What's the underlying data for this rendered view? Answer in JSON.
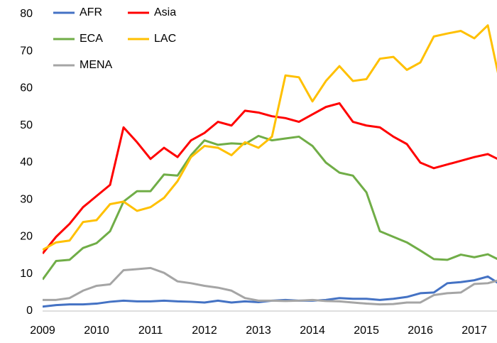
{
  "chart_data": {
    "type": "line",
    "x": [
      2009,
      2009.25,
      2009.5,
      2009.75,
      2010,
      2010.25,
      2010.5,
      2010.75,
      2011,
      2011.25,
      2011.5,
      2011.75,
      2012,
      2012.25,
      2012.5,
      2012.75,
      2013,
      2013.25,
      2013.5,
      2013.75,
      2014,
      2014.25,
      2014.5,
      2014.75,
      2015,
      2015.25,
      2015.5,
      2015.75,
      2016,
      2016.25,
      2016.5,
      2016.75,
      2017,
      2017.25,
      2017.5
    ],
    "series": [
      {
        "name": "AFR",
        "color": "#4472c4",
        "values": [
          1.2,
          1.6,
          1.8,
          1.8,
          2,
          2.5,
          2.8,
          2.6,
          2.6,
          2.8,
          2.6,
          2.5,
          2.3,
          2.8,
          2.3,
          2.6,
          2.4,
          2.8,
          3,
          2.8,
          2.8,
          3,
          3.5,
          3.3,
          3.3,
          3,
          3.3,
          3.8,
          4.8,
          5,
          7.5,
          7.8,
          8.3,
          9.3,
          7
        ]
      },
      {
        "name": "Asia",
        "color": "#ff0000",
        "values": [
          15.5,
          20,
          23.5,
          28,
          31,
          34,
          49.5,
          45.5,
          41,
          44,
          41.5,
          46,
          48,
          51,
          50,
          54,
          53.5,
          52.5,
          52,
          51,
          53,
          55,
          56,
          51,
          50,
          49.5,
          47,
          45,
          40,
          38.5,
          39.5,
          40.5,
          41.5,
          42.3,
          40.5
        ]
      },
      {
        "name": "ECA",
        "color": "#70ad47",
        "values": [
          8.5,
          13.5,
          13.8,
          17,
          18.3,
          21.5,
          29.5,
          32.3,
          32.3,
          36.8,
          36.5,
          42,
          46,
          44.8,
          45.2,
          45,
          47.2,
          46,
          46.5,
          47,
          44.5,
          40,
          37.3,
          36.5,
          32,
          21.5,
          20,
          18.5,
          16.3,
          14,
          13.8,
          15.2,
          14.5,
          15.3,
          13.5
        ]
      },
      {
        "name": "LAC",
        "color": "#ffc000",
        "values": [
          16.5,
          18.5,
          19,
          24,
          24.5,
          28.8,
          29.5,
          27,
          28,
          30.5,
          35,
          41.5,
          44.5,
          44,
          42,
          45.5,
          44,
          47,
          63.5,
          63,
          56.5,
          62,
          66,
          62,
          62.5,
          68,
          68.5,
          65,
          67,
          74,
          74.8,
          75.5,
          73.5,
          77,
          60
        ]
      },
      {
        "name": "MENA",
        "color": "#a5a5a5",
        "values": [
          3,
          3,
          3.5,
          5.5,
          6.8,
          7.2,
          11,
          11.3,
          11.6,
          10.3,
          8,
          7.5,
          6.8,
          6.3,
          5.5,
          3.5,
          2.8,
          2.8,
          2.7,
          2.8,
          3,
          2.7,
          2.6,
          2.3,
          2,
          1.8,
          1.9,
          2.3,
          2.3,
          4.3,
          4.8,
          5,
          7.3,
          7.5,
          8.5
        ]
      }
    ],
    "xlim": [
      2009,
      2017.42
    ],
    "xticks": [
      2009,
      2010,
      2011,
      2012,
      2013,
      2014,
      2015,
      2016,
      2017
    ],
    "ylim": [
      0,
      80
    ],
    "yticks": [
      0,
      10,
      20,
      30,
      40,
      50,
      60,
      70,
      80
    ],
    "grid": false
  }
}
